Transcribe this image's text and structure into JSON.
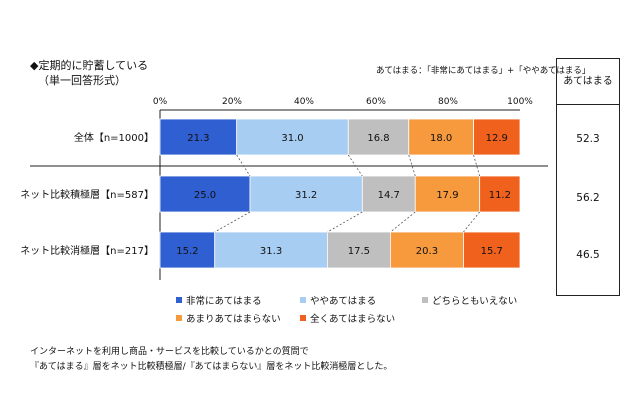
{
  "question": {
    "title": "◆定期的に貯蓄している",
    "subtitle": "（単一回答形式）",
    "definition": "あてはまる：「非常にあてはまる」+「ややあてはまる」"
  },
  "chart_data": {
    "type": "bar",
    "orientation": "horizontal-stacked-percent",
    "categories": [
      "全体【n=1000】",
      "ネット比較積極層【n=587】",
      "ネット比較消極層【n=217】"
    ],
    "series": [
      {
        "name": "非常にあてはまる",
        "color": "#2f5fd0",
        "values": [
          21.3,
          25.0,
          15.2
        ]
      },
      {
        "name": "ややあてはまる",
        "color": "#a7cdf2",
        "values": [
          31.0,
          31.2,
          31.3
        ]
      },
      {
        "name": "どちらともいえない",
        "color": "#bfbfbf",
        "values": [
          16.8,
          14.7,
          17.5
        ]
      },
      {
        "name": "あまりあてはまらない",
        "color": "#f79a3e",
        "values": [
          18.0,
          17.9,
          20.3
        ]
      },
      {
        "name": "全くあてはまらない",
        "color": "#f0611d",
        "values": [
          12.9,
          11.2,
          15.7
        ]
      }
    ],
    "value_labels": [
      [
        "21.3",
        "31.0",
        "16.8",
        "18.0",
        "12.9"
      ],
      [
        "25.0",
        "31.2",
        "14.7",
        "17.9",
        "11.2"
      ],
      [
        "15.2",
        "31.3",
        "17.5",
        "20.3",
        "15.7"
      ]
    ],
    "xticks": [
      "0%",
      "20%",
      "40%",
      "60%",
      "80%",
      "100%"
    ],
    "xlim": [
      0,
      100
    ],
    "legend_position": "bottom",
    "side_table": {
      "header": "あてはまる",
      "values": [
        "52.3",
        "56.2",
        "46.5"
      ]
    }
  },
  "footnotes": [
    "インターネットを利用し商品・サービスを比較しているかとの質問で",
    "『あてはまる』層をネット比較積極層/『あてはまらない』層をネット比較消極層とした。"
  ]
}
